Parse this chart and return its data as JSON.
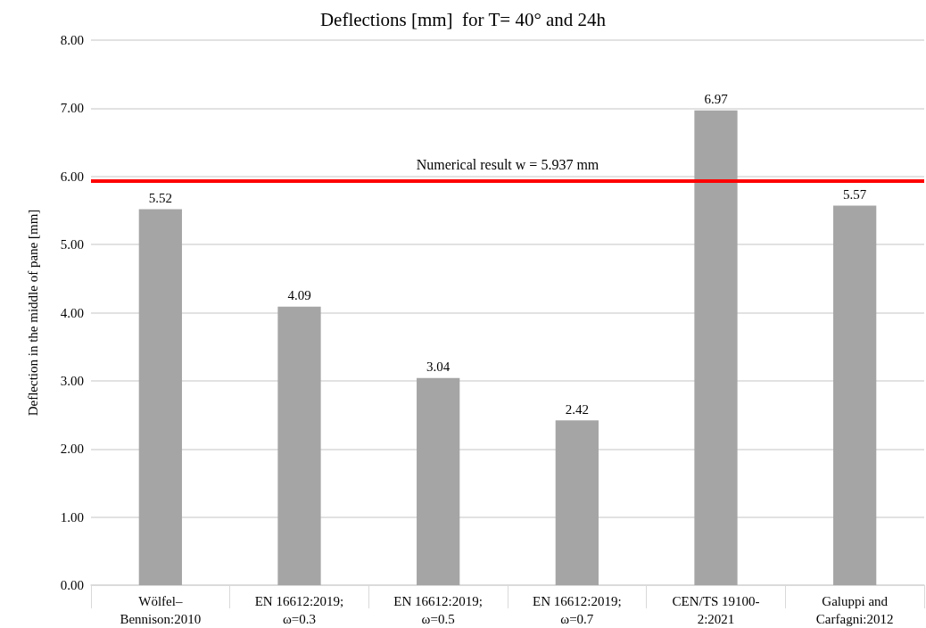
{
  "chart_data": {
    "type": "bar",
    "title": "Deflections [mm]  for T= 40° and 24h",
    "ylabel": "Deflection in the middle of pane [mm]",
    "categories": [
      "Wölfel–Bennison:2010",
      "EN 16612:2019; ω=0.3",
      "EN 16612:2019; ω=0.5",
      "EN 16612:2019; ω=0.7",
      "CEN/TS 19100-2:2021",
      "Galuppi and Carfagni:2012"
    ],
    "values": [
      5.52,
      4.09,
      3.04,
      2.42,
      6.97,
      5.57
    ],
    "color": "#a5a5a5",
    "data_labels": true,
    "ylim": [
      0,
      8
    ],
    "yticks": [
      {
        "value": 0,
        "label": "0.00"
      },
      {
        "value": 1,
        "label": "1.00"
      },
      {
        "value": 2,
        "label": "2.00"
      },
      {
        "value": 3,
        "label": "3.00"
      },
      {
        "value": 4,
        "label": "4.00"
      },
      {
        "value": 5,
        "label": "5.00"
      },
      {
        "value": 6,
        "label": "6.00"
      },
      {
        "value": 7,
        "label": "7.00"
      },
      {
        "value": 8,
        "label": "8.00"
      }
    ],
    "grid": "y",
    "ref_lines": [
      {
        "axis": "y",
        "value": 5.937,
        "label": "Numerical result w = 5.937 mm",
        "color": "#ff0000"
      }
    ]
  }
}
